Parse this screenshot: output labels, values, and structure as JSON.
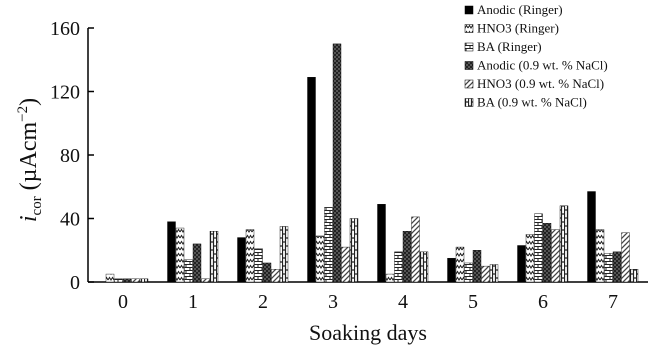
{
  "chart_data": {
    "type": "bar",
    "title": "",
    "xlabel": "Soaking days",
    "ylabel": {
      "main": "i",
      "sub": "cor",
      "unit": " (µAcm",
      "sup": "−2",
      "close": ")"
    },
    "categories": [
      "0",
      "1",
      "2",
      "3",
      "4",
      "5",
      "6",
      "7"
    ],
    "ylim": [
      0,
      160
    ],
    "yticks": [
      "0",
      "40",
      "80",
      "120",
      "160"
    ],
    "grid": false,
    "legend_position": "top-right",
    "series": [
      {
        "name": "Anodic (Ringer)",
        "pattern": "solid",
        "values": [
          0,
          38,
          28,
          129,
          49,
          15,
          23,
          57
        ]
      },
      {
        "name": "HNO3 (Ringer)",
        "pattern": "zigzag",
        "values": [
          5,
          34,
          33,
          29,
          5,
          22,
          30,
          33
        ]
      },
      {
        "name": "BA (Ringer)",
        "pattern": "brick",
        "values": [
          2,
          14,
          21,
          47,
          19,
          12,
          43,
          18
        ]
      },
      {
        "name": "Anodic (0.9 wt. % NaCl)",
        "pattern": "checker",
        "values": [
          2,
          24,
          12,
          150,
          32,
          20,
          37,
          19
        ]
      },
      {
        "name": "HNO3 (0.9 wt. % NaCl)",
        "pattern": "diagonal",
        "values": [
          2,
          2,
          8,
          22,
          41,
          10,
          33,
          31
        ]
      },
      {
        "name": "BA (0.9 wt. % NaCl)",
        "pattern": "vbrick",
        "values": [
          2,
          32,
          35,
          40,
          19,
          11,
          48,
          8
        ]
      }
    ]
  }
}
